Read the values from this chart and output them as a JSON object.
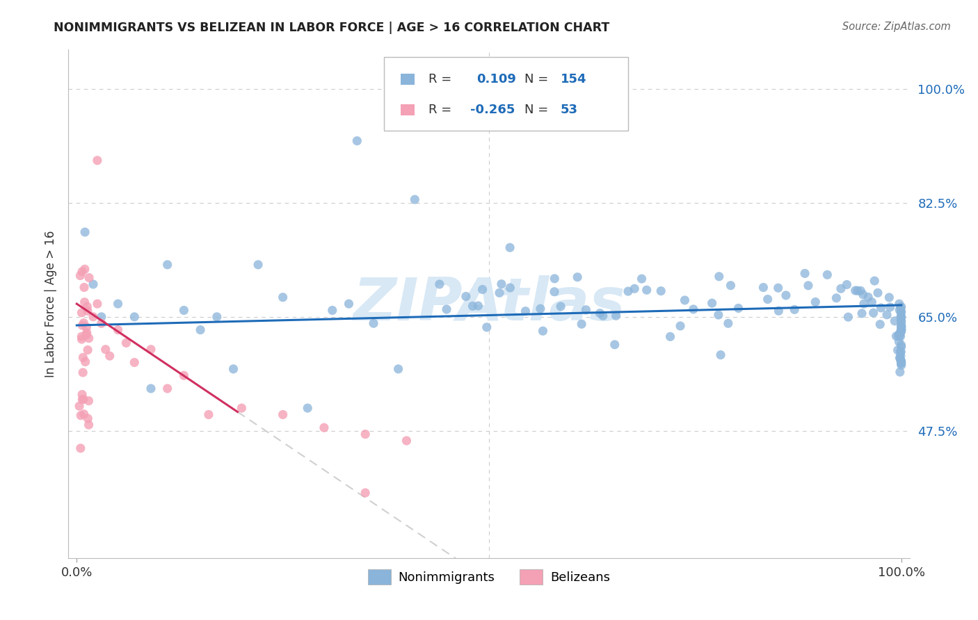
{
  "title": "NONIMMIGRANTS VS BELIZEAN IN LABOR FORCE | AGE > 16 CORRELATION CHART",
  "source": "Source: ZipAtlas.com",
  "ylabel": "In Labor Force | Age > 16",
  "r_nonimmigrant": 0.109,
  "n_nonimmigrant": 154,
  "r_belizean": -0.265,
  "n_belizean": 53,
  "nonimmigrant_color": "#8AB4DA",
  "belizean_color": "#F4A0B5",
  "trend_nonimmigrant_color": "#1E6BB8",
  "trend_belizean_color": "#D03060",
  "trend_extended_color": "#D0D0D0",
  "background_color": "#FFFFFF",
  "grid_color": "#CCCCCC",
  "title_color": "#222222",
  "source_color": "#666666",
  "watermark": "ZIPAtlas",
  "watermark_color": "#D8E8F5",
  "ytick_labels": [
    "47.5%",
    "65.0%",
    "82.5%",
    "100.0%"
  ],
  "yticks": [
    0.475,
    0.65,
    0.825,
    1.0
  ],
  "ylim": [
    0.28,
    1.06
  ],
  "xlim": [
    -0.01,
    1.01
  ]
}
